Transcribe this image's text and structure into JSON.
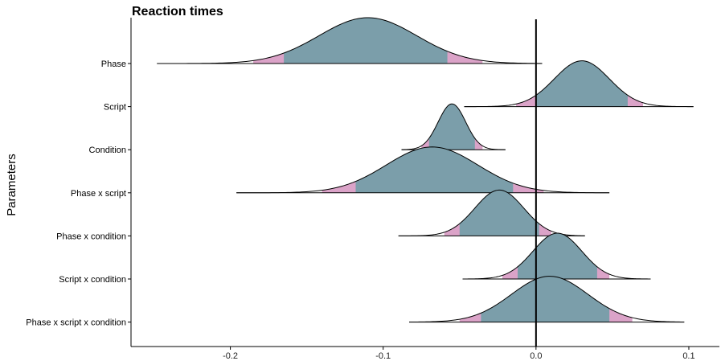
{
  "chart_data": {
    "type": "ridgeline",
    "title": "Reaction times",
    "xlabel": "",
    "ylabel": "Parameters",
    "xlim": [
      -0.265,
      0.12
    ],
    "x_ticks": [
      -0.2,
      -0.1,
      0.0,
      0.1
    ],
    "x_tick_labels": [
      "-0.2",
      "-0.1",
      "0.0",
      "0.1"
    ],
    "reference_line_x": 0.0,
    "grid": false,
    "colors": {
      "inner_interval": "#7b9eaa",
      "outer_interval": "#dba3c8",
      "line": "#000000"
    },
    "series": [
      {
        "name": "Phase",
        "mean": -0.11,
        "sd": 0.032,
        "min": -0.248,
        "max": 0.004,
        "inner": [
          -0.165,
          -0.058
        ],
        "outer": [
          -0.185,
          -0.035
        ]
      },
      {
        "name": "Script",
        "mean": 0.03,
        "sd": 0.018,
        "min": -0.047,
        "max": 0.103,
        "inner": [
          0.0,
          0.06
        ],
        "outer": [
          -0.013,
          0.07
        ]
      },
      {
        "name": "Condition",
        "mean": -0.055,
        "sd": 0.009,
        "min": -0.088,
        "max": -0.02,
        "inner": [
          -0.07,
          -0.04
        ],
        "outer": [
          -0.075,
          -0.035
        ]
      },
      {
        "name": "Phase x script",
        "mean": -0.068,
        "sd": 0.03,
        "min": -0.196,
        "max": 0.048,
        "inner": [
          -0.118,
          -0.015
        ],
        "outer": [
          -0.14,
          0.005
        ]
      },
      {
        "name": "Phase x condition",
        "mean": -0.024,
        "sd": 0.016,
        "min": -0.09,
        "max": 0.032,
        "inner": [
          -0.05,
          0.002
        ],
        "outer": [
          -0.06,
          0.01
        ]
      },
      {
        "name": "Script x condition",
        "mean": 0.014,
        "sd": 0.016,
        "min": -0.048,
        "max": 0.075,
        "inner": [
          -0.012,
          0.04
        ],
        "outer": [
          -0.022,
          0.048
        ]
      },
      {
        "name": "Phase x script x condition",
        "mean": 0.009,
        "sd": 0.025,
        "min": -0.083,
        "max": 0.097,
        "inner": [
          -0.036,
          0.048
        ],
        "outer": [
          -0.05,
          0.063
        ]
      }
    ]
  }
}
